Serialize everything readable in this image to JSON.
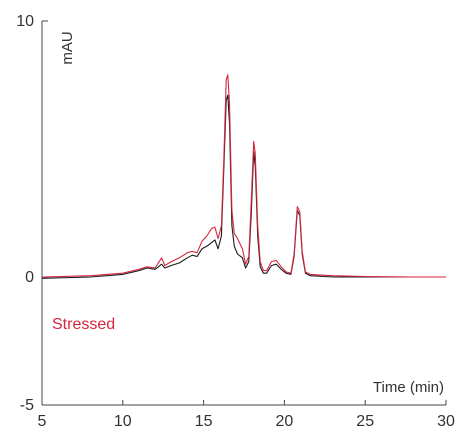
{
  "chart_data": {
    "type": "line",
    "xlabel": "Time (min)",
    "ylabel": "mAU",
    "xlim": [
      5,
      30
    ],
    "ylim": [
      -5,
      10
    ],
    "x_ticks": [
      5,
      10,
      15,
      20,
      25,
      30
    ],
    "x_tick_labels": [
      "5",
      "10",
      "15",
      "20",
      "25",
      "30"
    ],
    "y_ticks": [
      -5,
      0,
      10
    ],
    "y_tick_labels": [
      "-5",
      "0",
      "10"
    ],
    "grid": false,
    "series": [
      {
        "name": "",
        "color": "#1a1a1a",
        "points": [
          [
            5,
            -0.05
          ],
          [
            8,
            0.0
          ],
          [
            10,
            0.1
          ],
          [
            11,
            0.25
          ],
          [
            11.5,
            0.35
          ],
          [
            12,
            0.3
          ],
          [
            12.2,
            0.4
          ],
          [
            12.4,
            0.5
          ],
          [
            12.6,
            0.35
          ],
          [
            13,
            0.45
          ],
          [
            13.5,
            0.55
          ],
          [
            14,
            0.75
          ],
          [
            14.3,
            0.85
          ],
          [
            14.6,
            0.8
          ],
          [
            14.9,
            1.1
          ],
          [
            15.2,
            1.2
          ],
          [
            15.5,
            1.35
          ],
          [
            15.7,
            1.45
          ],
          [
            15.9,
            1.1
          ],
          [
            16.1,
            1.6
          ],
          [
            16.25,
            4.2
          ],
          [
            16.4,
            6.9
          ],
          [
            16.5,
            7.1
          ],
          [
            16.6,
            6.0
          ],
          [
            16.75,
            2.0
          ],
          [
            16.9,
            1.2
          ],
          [
            17.1,
            0.9
          ],
          [
            17.4,
            0.75
          ],
          [
            17.6,
            0.35
          ],
          [
            17.8,
            0.6
          ],
          [
            17.95,
            2.5
          ],
          [
            18.1,
            4.9
          ],
          [
            18.2,
            4.3
          ],
          [
            18.35,
            1.6
          ],
          [
            18.5,
            0.4
          ],
          [
            18.7,
            0.15
          ],
          [
            18.9,
            0.15
          ],
          [
            19.2,
            0.45
          ],
          [
            19.5,
            0.5
          ],
          [
            19.8,
            0.3
          ],
          [
            20.1,
            0.15
          ],
          [
            20.4,
            0.1
          ],
          [
            20.6,
            0.8
          ],
          [
            20.8,
            2.6
          ],
          [
            20.95,
            2.4
          ],
          [
            21.1,
            0.9
          ],
          [
            21.3,
            0.15
          ],
          [
            21.6,
            0.05
          ],
          [
            23,
            0.0
          ],
          [
            25,
            0.0
          ],
          [
            28,
            0.0
          ],
          [
            30,
            0.0
          ]
        ]
      },
      {
        "name": "Stressed",
        "color": "#d7263d",
        "points": [
          [
            5,
            0.0
          ],
          [
            8,
            0.05
          ],
          [
            10,
            0.15
          ],
          [
            11,
            0.3
          ],
          [
            11.5,
            0.4
          ],
          [
            12,
            0.35
          ],
          [
            12.2,
            0.55
          ],
          [
            12.4,
            0.75
          ],
          [
            12.6,
            0.45
          ],
          [
            13,
            0.6
          ],
          [
            13.5,
            0.75
          ],
          [
            14,
            0.95
          ],
          [
            14.3,
            1.0
          ],
          [
            14.6,
            0.95
          ],
          [
            14.9,
            1.4
          ],
          [
            15.2,
            1.6
          ],
          [
            15.5,
            1.9
          ],
          [
            15.7,
            1.95
          ],
          [
            15.9,
            1.5
          ],
          [
            16.1,
            2.0
          ],
          [
            16.25,
            4.6
          ],
          [
            16.4,
            7.7
          ],
          [
            16.5,
            7.9
          ],
          [
            16.6,
            6.8
          ],
          [
            16.75,
            2.6
          ],
          [
            16.9,
            1.7
          ],
          [
            17.1,
            1.5
          ],
          [
            17.4,
            1.1
          ],
          [
            17.6,
            0.5
          ],
          [
            17.8,
            0.8
          ],
          [
            17.95,
            3.0
          ],
          [
            18.1,
            5.3
          ],
          [
            18.2,
            4.8
          ],
          [
            18.35,
            2.0
          ],
          [
            18.5,
            0.6
          ],
          [
            18.7,
            0.25
          ],
          [
            18.9,
            0.25
          ],
          [
            19.2,
            0.6
          ],
          [
            19.5,
            0.65
          ],
          [
            19.8,
            0.4
          ],
          [
            20.1,
            0.2
          ],
          [
            20.4,
            0.15
          ],
          [
            20.6,
            0.9
          ],
          [
            20.8,
            2.75
          ],
          [
            20.95,
            2.55
          ],
          [
            21.1,
            1.0
          ],
          [
            21.3,
            0.2
          ],
          [
            21.6,
            0.1
          ],
          [
            23,
            0.05
          ],
          [
            25,
            0.02
          ],
          [
            28,
            0.0
          ],
          [
            30,
            0.0
          ]
        ]
      }
    ],
    "annotations": [
      {
        "text": "Stressed",
        "color": "#d7263d"
      }
    ]
  }
}
